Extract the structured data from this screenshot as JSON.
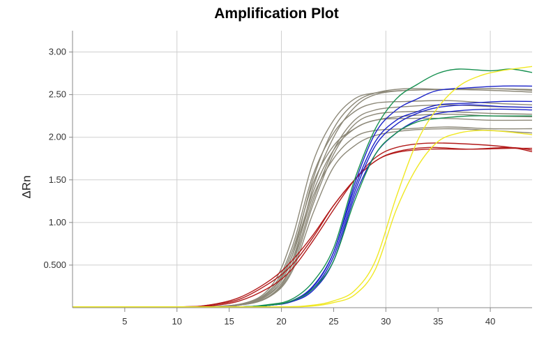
{
  "chart_data": {
    "type": "line",
    "title": "Amplification Plot",
    "xlabel": "",
    "ylabel": "ΔRn",
    "xlim": [
      0,
      44
    ],
    "ylim": [
      0,
      3.25
    ],
    "xticks": [
      5,
      10,
      15,
      20,
      25,
      30,
      35,
      40
    ],
    "xtick_labels": [
      "5",
      "10",
      "15",
      "20",
      "25",
      "30",
      "35",
      "40"
    ],
    "yticks": [
      0.5,
      1.0,
      1.5,
      2.0,
      2.5,
      3.0
    ],
    "ytick_labels": [
      "0.500",
      "1.00",
      "1.50",
      "2.00",
      "2.50",
      "3.00"
    ],
    "grid": true,
    "colors": {
      "gray": "#8c8878",
      "red": "#b21a1a",
      "blue": "#1a22c8",
      "green": "#169050",
      "yellow": "#f0e822"
    },
    "series": [
      {
        "color": "gray",
        "values": [
          [
            0,
            0.01
          ],
          [
            10,
            0.01
          ],
          [
            16,
            0.04
          ],
          [
            19,
            0.25
          ],
          [
            21,
            0.8
          ],
          [
            23,
            1.7
          ],
          [
            25,
            2.2
          ],
          [
            27,
            2.45
          ],
          [
            29,
            2.52
          ],
          [
            32,
            2.55
          ],
          [
            36,
            2.56
          ],
          [
            40,
            2.55
          ],
          [
            44,
            2.53
          ]
        ]
      },
      {
        "color": "gray",
        "values": [
          [
            0,
            0.01
          ],
          [
            10,
            0.01
          ],
          [
            16,
            0.04
          ],
          [
            19,
            0.22
          ],
          [
            21,
            0.7
          ],
          [
            23,
            1.55
          ],
          [
            25,
            2.05
          ],
          [
            27,
            2.3
          ],
          [
            29,
            2.4
          ],
          [
            32,
            2.42
          ],
          [
            36,
            2.43
          ],
          [
            40,
            2.4
          ],
          [
            44,
            2.38
          ]
        ]
      },
      {
        "color": "gray",
        "values": [
          [
            0,
            0.01
          ],
          [
            10,
            0.01
          ],
          [
            16,
            0.04
          ],
          [
            19,
            0.2
          ],
          [
            21,
            0.65
          ],
          [
            23,
            1.45
          ],
          [
            25,
            1.9
          ],
          [
            27,
            2.1
          ],
          [
            29,
            2.2
          ],
          [
            32,
            2.22
          ],
          [
            36,
            2.22
          ],
          [
            40,
            2.2
          ],
          [
            44,
            2.2
          ]
        ]
      },
      {
        "color": "gray",
        "values": [
          [
            0,
            0.01
          ],
          [
            10,
            0.01
          ],
          [
            16,
            0.03
          ],
          [
            19,
            0.2
          ],
          [
            21,
            0.6
          ],
          [
            23,
            1.35
          ],
          [
            25,
            1.85
          ],
          [
            27,
            2.1
          ],
          [
            29,
            2.2
          ],
          [
            32,
            2.25
          ],
          [
            36,
            2.27
          ],
          [
            40,
            2.25
          ],
          [
            44,
            2.24
          ]
        ]
      },
      {
        "color": "gray",
        "values": [
          [
            0,
            0.01
          ],
          [
            10,
            0.01
          ],
          [
            16,
            0.03
          ],
          [
            19,
            0.18
          ],
          [
            21,
            0.55
          ],
          [
            23,
            1.3
          ],
          [
            25,
            1.75
          ],
          [
            27,
            2.0
          ],
          [
            29,
            2.08
          ],
          [
            32,
            2.1
          ],
          [
            36,
            2.12
          ],
          [
            40,
            2.1
          ],
          [
            44,
            2.1
          ]
        ]
      },
      {
        "color": "gray",
        "values": [
          [
            0,
            0.01
          ],
          [
            10,
            0.01
          ],
          [
            16,
            0.03
          ],
          [
            19,
            0.17
          ],
          [
            21,
            0.5
          ],
          [
            23,
            1.25
          ],
          [
            25,
            1.85
          ],
          [
            27,
            2.2
          ],
          [
            29,
            2.32
          ],
          [
            32,
            2.36
          ],
          [
            36,
            2.38
          ],
          [
            40,
            2.36
          ],
          [
            44,
            2.35
          ]
        ]
      },
      {
        "color": "gray",
        "values": [
          [
            0,
            0.01
          ],
          [
            10,
            0.01
          ],
          [
            16,
            0.03
          ],
          [
            19,
            0.15
          ],
          [
            21,
            0.45
          ],
          [
            23,
            1.2
          ],
          [
            25,
            1.8
          ],
          [
            27,
            2.15
          ],
          [
            29,
            2.27
          ],
          [
            32,
            2.3
          ],
          [
            36,
            2.3
          ],
          [
            40,
            2.28
          ],
          [
            44,
            2.27
          ]
        ]
      },
      {
        "color": "gray",
        "values": [
          [
            0,
            0.01
          ],
          [
            10,
            0.01
          ],
          [
            16,
            0.03
          ],
          [
            19,
            0.15
          ],
          [
            21,
            0.5
          ],
          [
            23,
            1.4
          ],
          [
            25,
            2.0
          ],
          [
            27,
            2.35
          ],
          [
            29,
            2.5
          ],
          [
            32,
            2.55
          ],
          [
            36,
            2.56
          ],
          [
            40,
            2.57
          ],
          [
            44,
            2.55
          ]
        ]
      },
      {
        "color": "gray",
        "values": [
          [
            0,
            0.01
          ],
          [
            10,
            0.01
          ],
          [
            16,
            0.03
          ],
          [
            19,
            0.14
          ],
          [
            21,
            0.42
          ],
          [
            23,
            1.1
          ],
          [
            25,
            1.65
          ],
          [
            27,
            1.9
          ],
          [
            29,
            2.02
          ],
          [
            32,
            2.08
          ],
          [
            36,
            2.1
          ],
          [
            40,
            2.08
          ],
          [
            44,
            2.05
          ]
        ]
      },
      {
        "color": "gray",
        "values": [
          [
            0,
            0.01
          ],
          [
            10,
            0.01
          ],
          [
            16,
            0.03
          ],
          [
            19,
            0.2
          ],
          [
            21,
            0.6
          ],
          [
            23,
            1.5
          ],
          [
            25,
            2.1
          ],
          [
            27,
            2.4
          ],
          [
            29,
            2.52
          ],
          [
            32,
            2.57
          ],
          [
            36,
            2.56
          ],
          [
            40,
            2.57
          ],
          [
            44,
            2.56
          ]
        ]
      },
      {
        "color": "red",
        "values": [
          [
            0,
            0.01
          ],
          [
            10,
            0.01
          ],
          [
            13,
            0.03
          ],
          [
            16,
            0.12
          ],
          [
            19,
            0.33
          ],
          [
            21,
            0.55
          ],
          [
            23,
            0.85
          ],
          [
            25,
            1.2
          ],
          [
            27,
            1.5
          ],
          [
            29,
            1.72
          ],
          [
            31,
            1.82
          ],
          [
            34,
            1.86
          ],
          [
            38,
            1.86
          ],
          [
            42,
            1.88
          ],
          [
            44,
            1.85
          ]
        ]
      },
      {
        "color": "red",
        "values": [
          [
            0,
            0.01
          ],
          [
            10,
            0.01
          ],
          [
            13,
            0.03
          ],
          [
            16,
            0.1
          ],
          [
            19,
            0.3
          ],
          [
            21,
            0.5
          ],
          [
            23,
            0.82
          ],
          [
            25,
            1.2
          ],
          [
            27,
            1.5
          ],
          [
            29,
            1.72
          ],
          [
            31,
            1.83
          ],
          [
            34,
            1.88
          ],
          [
            38,
            1.86
          ],
          [
            42,
            1.87
          ],
          [
            44,
            1.87
          ]
        ]
      },
      {
        "color": "red",
        "values": [
          [
            0,
            0.01
          ],
          [
            10,
            0.01
          ],
          [
            13,
            0.02
          ],
          [
            16,
            0.08
          ],
          [
            19,
            0.25
          ],
          [
            21,
            0.45
          ],
          [
            23,
            0.78
          ],
          [
            25,
            1.15
          ],
          [
            27,
            1.5
          ],
          [
            29,
            1.76
          ],
          [
            31,
            1.88
          ],
          [
            34,
            1.93
          ],
          [
            38,
            1.92
          ],
          [
            42,
            1.88
          ],
          [
            44,
            1.83
          ]
        ]
      },
      {
        "color": "blue",
        "values": [
          [
            0,
            0.01
          ],
          [
            10,
            0.01
          ],
          [
            16,
            0.01
          ],
          [
            19,
            0.03
          ],
          [
            21,
            0.07
          ],
          [
            23,
            0.2
          ],
          [
            25,
            0.55
          ],
          [
            27,
            1.3
          ],
          [
            29,
            1.8
          ],
          [
            31,
            2.05
          ],
          [
            33,
            2.2
          ],
          [
            35,
            2.28
          ],
          [
            38,
            2.32
          ],
          [
            41,
            2.33
          ],
          [
            44,
            2.32
          ]
        ]
      },
      {
        "color": "blue",
        "values": [
          [
            0,
            0.01
          ],
          [
            10,
            0.01
          ],
          [
            16,
            0.01
          ],
          [
            19,
            0.03
          ],
          [
            21,
            0.08
          ],
          [
            23,
            0.25
          ],
          [
            25,
            0.65
          ],
          [
            27,
            1.4
          ],
          [
            29,
            1.95
          ],
          [
            31,
            2.2
          ],
          [
            33,
            2.3
          ],
          [
            35,
            2.38
          ],
          [
            38,
            2.4
          ],
          [
            41,
            2.42
          ],
          [
            44,
            2.42
          ]
        ]
      },
      {
        "color": "blue",
        "values": [
          [
            0,
            0.01
          ],
          [
            10,
            0.01
          ],
          [
            16,
            0.01
          ],
          [
            19,
            0.03
          ],
          [
            21,
            0.08
          ],
          [
            23,
            0.22
          ],
          [
            25,
            0.6
          ],
          [
            27,
            1.35
          ],
          [
            29,
            1.9
          ],
          [
            31,
            2.15
          ],
          [
            33,
            2.28
          ],
          [
            35,
            2.35
          ],
          [
            38,
            2.38
          ],
          [
            41,
            2.36
          ],
          [
            44,
            2.35
          ]
        ]
      },
      {
        "color": "blue",
        "values": [
          [
            0,
            0.01
          ],
          [
            10,
            0.01
          ],
          [
            16,
            0.01
          ],
          [
            19,
            0.03
          ],
          [
            21,
            0.08
          ],
          [
            23,
            0.24
          ],
          [
            25,
            0.65
          ],
          [
            27,
            1.45
          ],
          [
            29,
            2.05
          ],
          [
            31,
            2.32
          ],
          [
            33,
            2.45
          ],
          [
            35,
            2.55
          ],
          [
            38,
            2.58
          ],
          [
            41,
            2.6
          ],
          [
            44,
            2.6
          ]
        ]
      },
      {
        "color": "green",
        "values": [
          [
            0,
            0.01
          ],
          [
            10,
            0.01
          ],
          [
            16,
            0.01
          ],
          [
            19,
            0.04
          ],
          [
            21,
            0.1
          ],
          [
            23,
            0.3
          ],
          [
            25,
            0.7
          ],
          [
            27,
            1.5
          ],
          [
            29,
            2.1
          ],
          [
            31,
            2.45
          ],
          [
            33,
            2.62
          ],
          [
            35,
            2.75
          ],
          [
            37,
            2.8
          ],
          [
            40,
            2.78
          ],
          [
            42,
            2.8
          ],
          [
            44,
            2.76
          ]
        ]
      },
      {
        "color": "green",
        "values": [
          [
            0,
            0.01
          ],
          [
            10,
            0.01
          ],
          [
            16,
            0.01
          ],
          [
            19,
            0.03
          ],
          [
            21,
            0.08
          ],
          [
            23,
            0.22
          ],
          [
            25,
            0.55
          ],
          [
            27,
            1.25
          ],
          [
            29,
            1.8
          ],
          [
            31,
            2.05
          ],
          [
            33,
            2.18
          ],
          [
            35,
            2.22
          ],
          [
            38,
            2.25
          ],
          [
            41,
            2.25
          ],
          [
            44,
            2.25
          ]
        ]
      },
      {
        "color": "yellow",
        "values": [
          [
            0,
            0.01
          ],
          [
            10,
            0.01
          ],
          [
            20,
            0.01
          ],
          [
            23,
            0.03
          ],
          [
            25,
            0.08
          ],
          [
            27,
            0.2
          ],
          [
            29,
            0.55
          ],
          [
            31,
            1.3
          ],
          [
            33,
            1.95
          ],
          [
            35,
            2.35
          ],
          [
            37,
            2.6
          ],
          [
            39,
            2.72
          ],
          [
            41,
            2.78
          ],
          [
            44,
            2.83
          ]
        ]
      },
      {
        "color": "yellow",
        "values": [
          [
            0,
            0.01
          ],
          [
            10,
            0.01
          ],
          [
            20,
            0.01
          ],
          [
            23,
            0.02
          ],
          [
            25,
            0.06
          ],
          [
            27,
            0.15
          ],
          [
            29,
            0.45
          ],
          [
            31,
            1.15
          ],
          [
            33,
            1.65
          ],
          [
            35,
            1.95
          ],
          [
            37,
            2.05
          ],
          [
            39,
            2.08
          ],
          [
            41,
            2.07
          ],
          [
            44,
            2.03
          ]
        ]
      }
    ]
  }
}
